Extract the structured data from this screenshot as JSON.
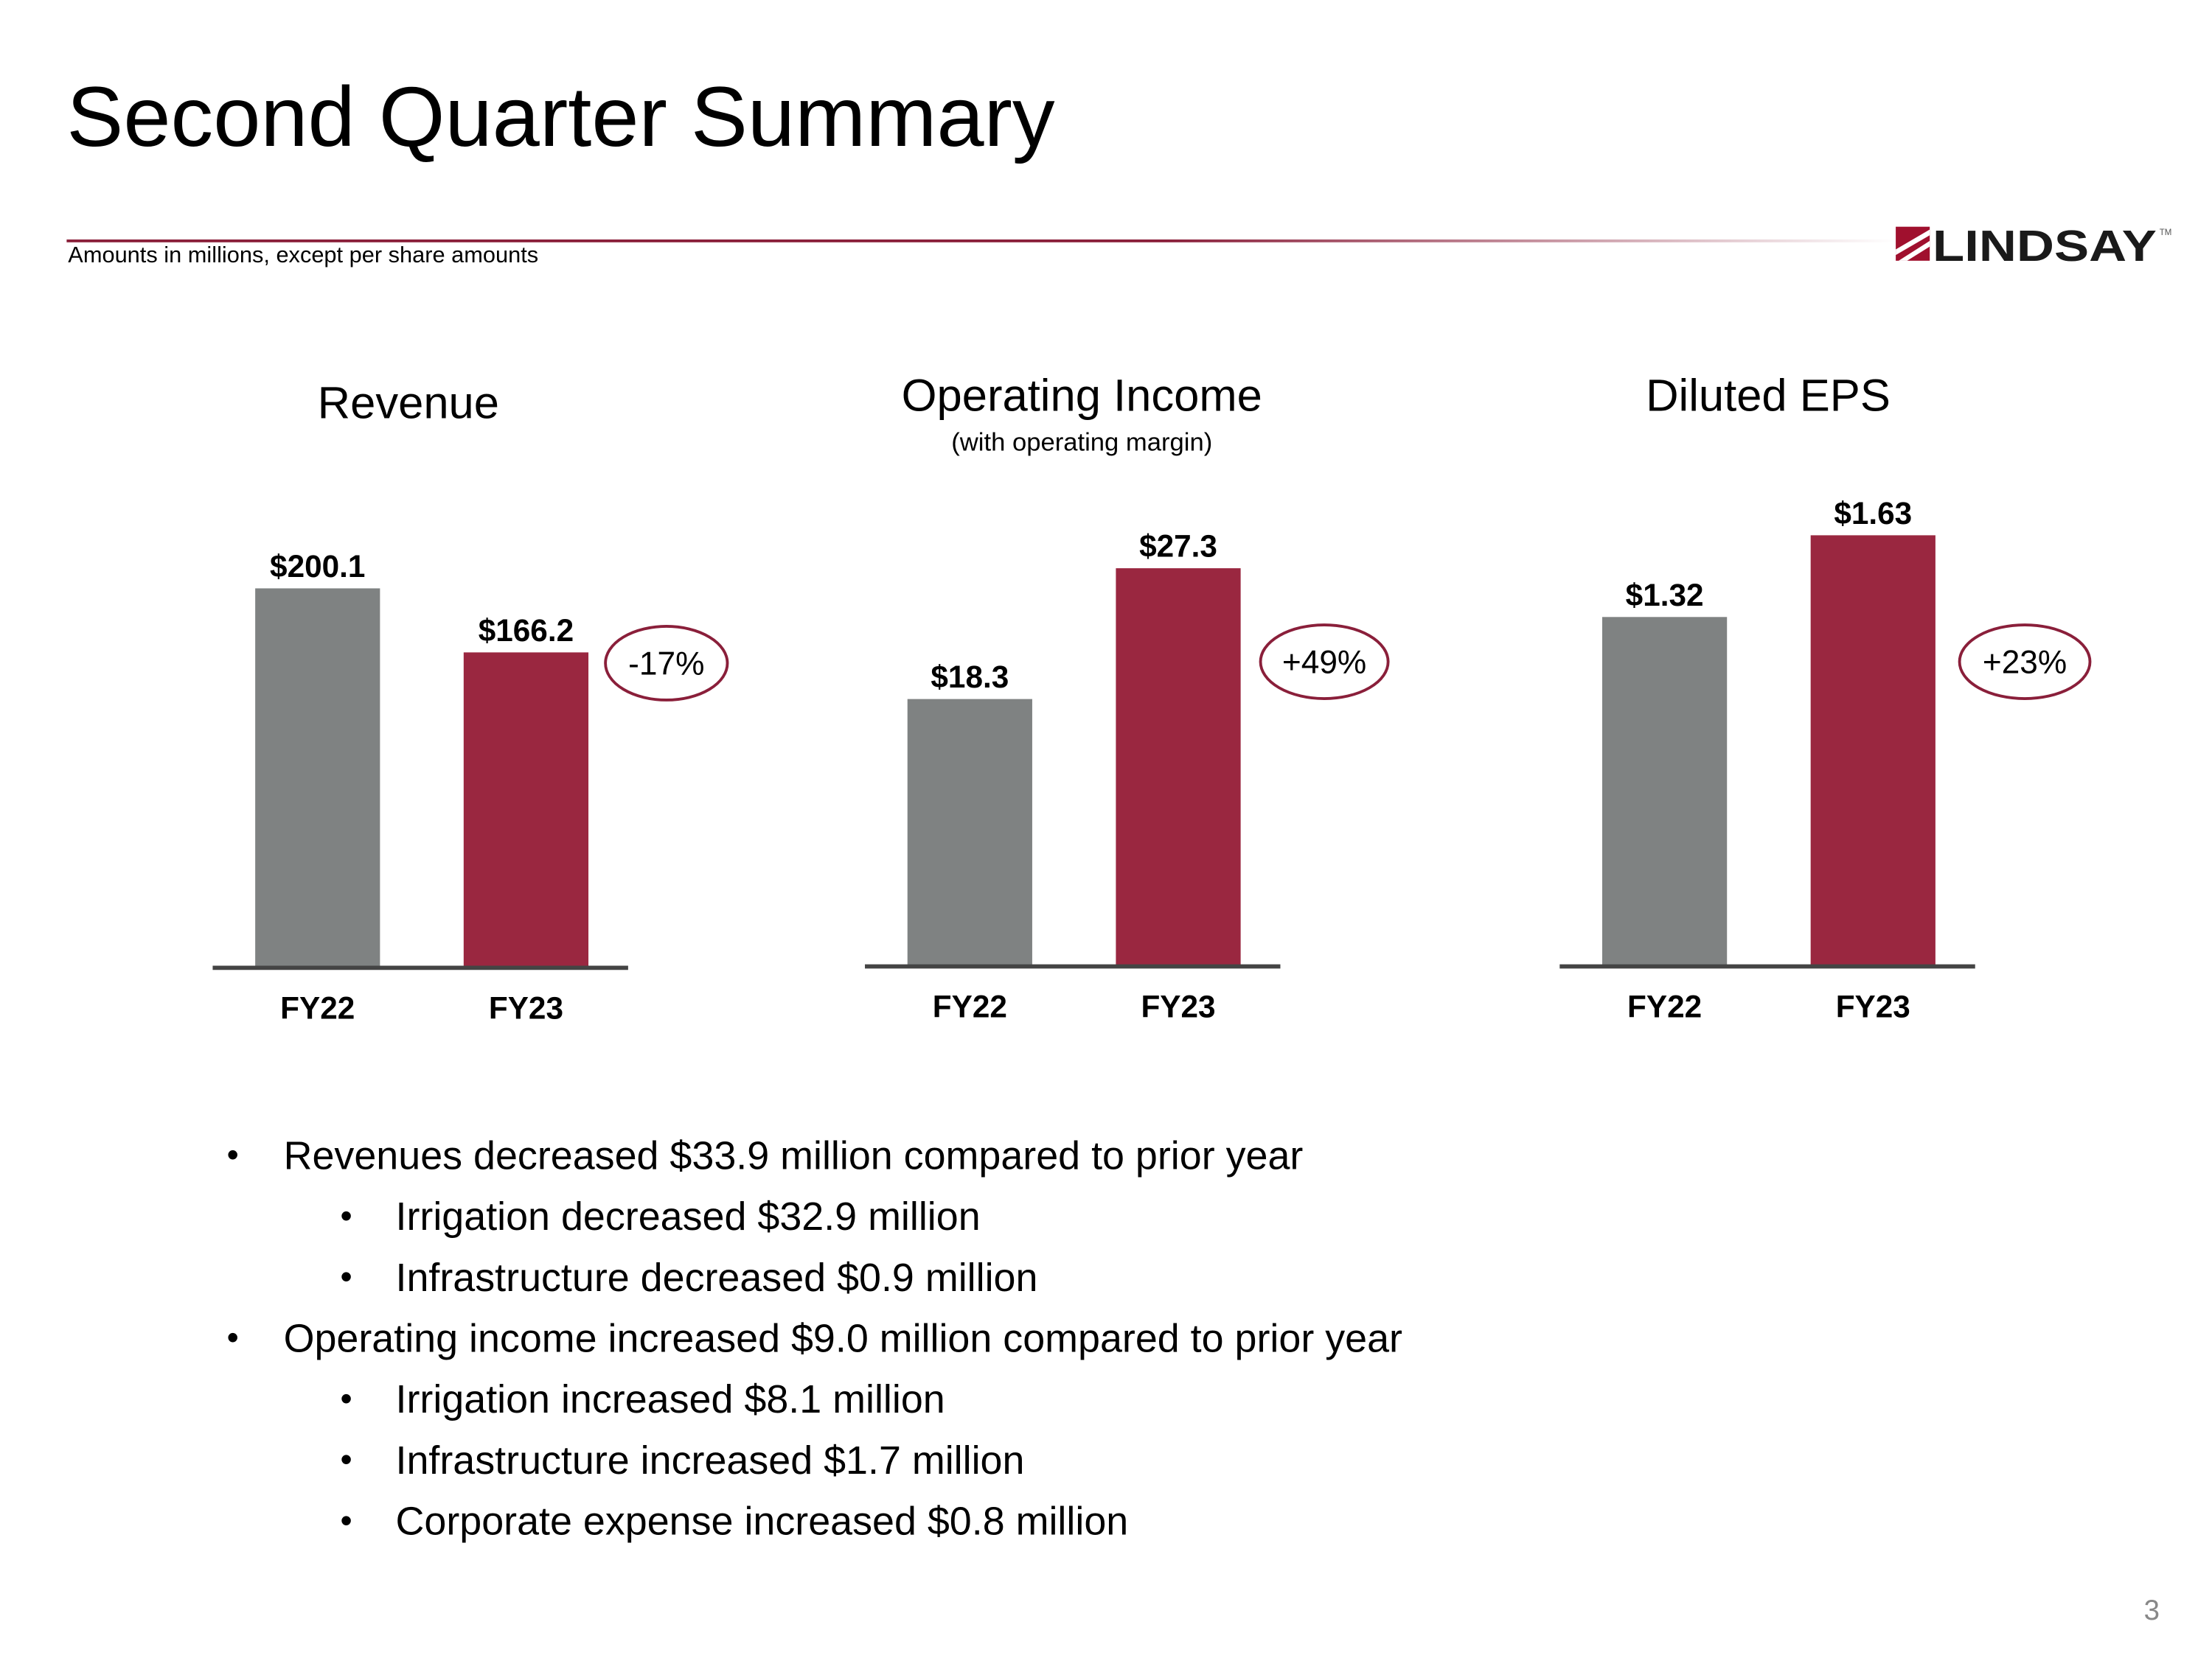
{
  "header": {
    "title": "Second Quarter Summary",
    "subnote": "Amounts in millions, except per share amounts",
    "logo_text": "LINDSAY",
    "logo_mark": "TM"
  },
  "colors": {
    "prior_year": "#7f8282",
    "current_year": "#9a2740",
    "accent": "#8a1f3a",
    "axis": "#444444"
  },
  "chart_data": [
    {
      "type": "bar",
      "title": "Revenue",
      "subtitle": "",
      "categories": [
        "FY22",
        "FY23"
      ],
      "values": [
        200.1,
        166.2
      ],
      "labels": [
        "$200.1",
        "$166.2"
      ],
      "ylim": [
        0,
        240
      ],
      "change_label": "-17%",
      "grid": false
    },
    {
      "type": "bar",
      "title": "Operating Income",
      "subtitle": "(with operating margin)",
      "categories": [
        "FY22",
        "FY23"
      ],
      "values": [
        18.3,
        27.3
      ],
      "labels": [
        "$18.3",
        "$27.3"
      ],
      "ylim": [
        0,
        31.2
      ],
      "change_label": "+49%",
      "grid": false
    },
    {
      "type": "bar",
      "title": "Diluted EPS",
      "subtitle": "",
      "categories": [
        "FY22",
        "FY23"
      ],
      "values": [
        1.32,
        1.63
      ],
      "labels": [
        "$1.32",
        "$1.63"
      ],
      "ylim": [
        0,
        1.72
      ],
      "change_label": "+23%",
      "grid": false
    }
  ],
  "bullets": [
    {
      "level": 1,
      "text": "Revenues decreased $33.9 million compared to prior year"
    },
    {
      "level": 2,
      "text": "Irrigation decreased $32.9 million"
    },
    {
      "level": 2,
      "text": "Infrastructure decreased $0.9 million"
    },
    {
      "level": 1,
      "text": "Operating income increased $9.0 million compared to prior year"
    },
    {
      "level": 2,
      "text": "Irrigation increased $8.1 million"
    },
    {
      "level": 2,
      "text": "Infrastructure increased $1.7 million"
    },
    {
      "level": 2,
      "text": "Corporate expense increased $0.8 million"
    }
  ],
  "bullet_glyph": "•",
  "page_number": "3"
}
